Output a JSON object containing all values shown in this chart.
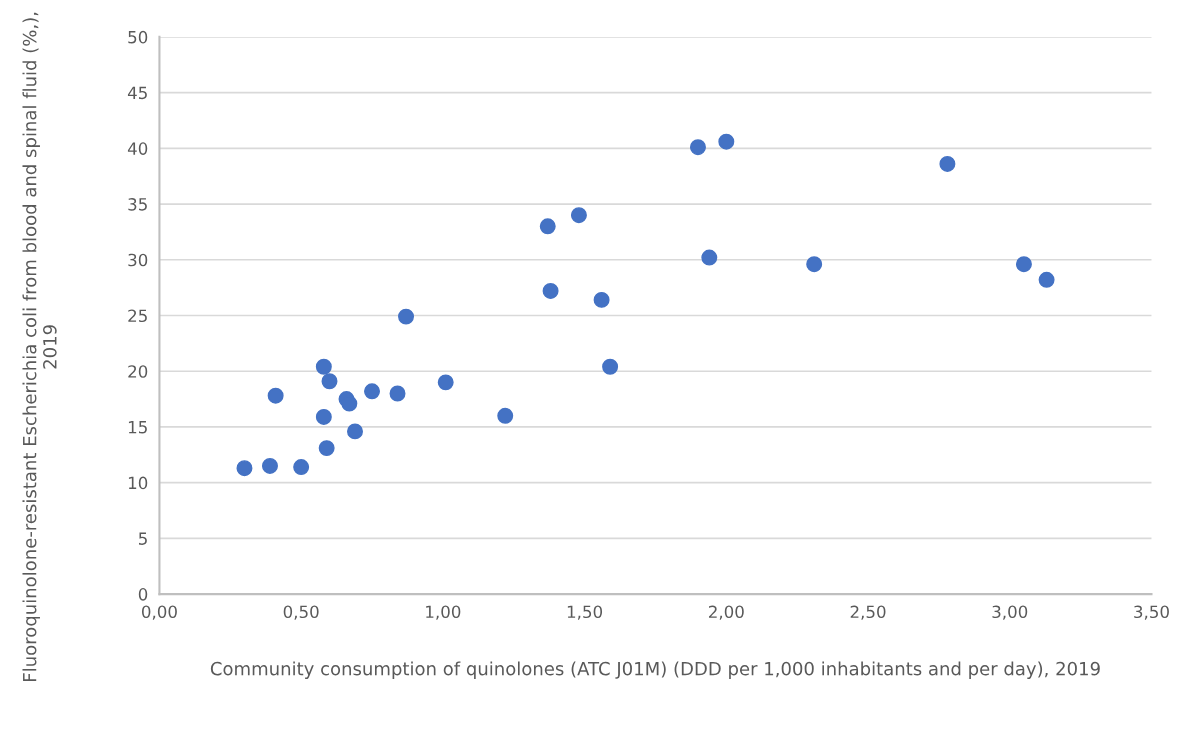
{
  "chart_data": {
    "type": "scatter",
    "xlabel": "Community consumption of quinolones (ATC J01M) (DDD per 1,000 inhabitants and per day), 2019",
    "ylabel": "Fluoroquinolone-resistant Escherichia coli from blood and spinal fluid (%,), 2019",
    "series": [
      {
        "color": "#4472c4",
        "x": [
          0.3,
          0.39,
          0.5,
          0.59,
          0.58,
          0.69,
          0.41,
          0.58,
          0.6,
          0.66,
          0.67,
          0.75,
          0.84,
          1.01,
          1.22,
          0.87,
          1.59,
          1.38,
          1.56,
          1.37,
          1.48,
          1.9,
          2.0,
          1.94,
          2.31,
          2.78,
          3.05,
          3.13
        ],
        "values": [
          11.3,
          11.5,
          11.4,
          13.1,
          15.9,
          14.6,
          17.8,
          20.4,
          19.1,
          17.5,
          17.1,
          18.2,
          18.0,
          19.0,
          16.0,
          24.9,
          20.4,
          27.2,
          26.4,
          33.0,
          34.0,
          40.1,
          40.6,
          30.2,
          29.6,
          38.6,
          29.6,
          28.2
        ]
      }
    ],
    "xlim": [
      0,
      3.5
    ],
    "xticks": [
      {
        "value": 0,
        "label": "0,00"
      },
      {
        "value": 0.5,
        "label": "0,50"
      },
      {
        "value": 1,
        "label": "1,00"
      },
      {
        "value": 1.5,
        "label": "1,50"
      },
      {
        "value": 2,
        "label": "2,00"
      },
      {
        "value": 2.5,
        "label": "2,50"
      },
      {
        "value": 3,
        "label": "3,00"
      },
      {
        "value": 3.5,
        "label": "3,50"
      }
    ],
    "ylim": [
      0,
      50
    ],
    "yticks": [
      0,
      5,
      10,
      15,
      20,
      25,
      30,
      35,
      40,
      45,
      50
    ],
    "grid": "y",
    "marker": "circle"
  }
}
